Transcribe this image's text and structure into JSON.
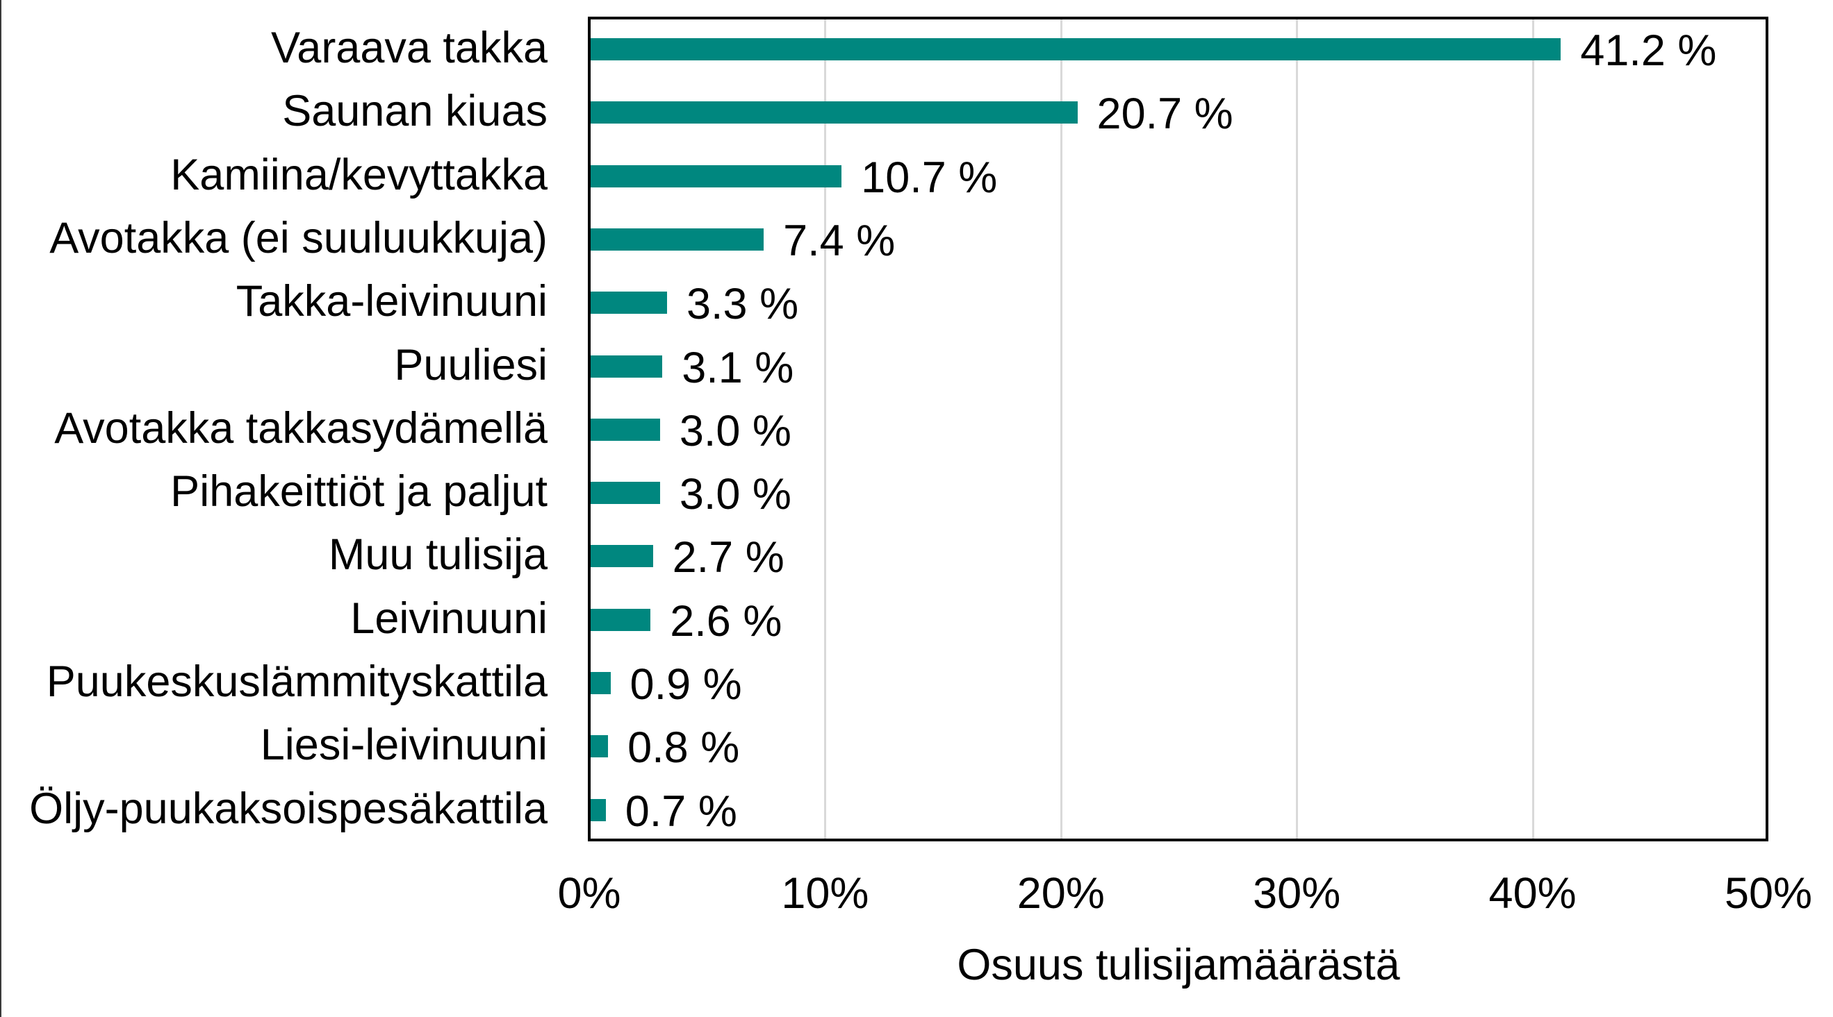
{
  "chart_data": {
    "type": "bar",
    "orientation": "horizontal",
    "title": "",
    "xlabel": "Osuus tulisijamäärästä",
    "ylabel": "",
    "xlim": [
      0,
      50
    ],
    "x_ticks": [
      "0%",
      "10%",
      "20%",
      "30%",
      "40%",
      "50%"
    ],
    "grid": "vertical",
    "legend": "none",
    "bar_color": "#00877f",
    "categories": [
      "Varaava takka",
      "Saunan kiuas",
      "Kamiina/kevyttakka",
      "Avotakka (ei suuluukkuja)",
      "Takka-leivinuuni",
      "Puuliesi",
      "Avotakka takkasydämellä",
      "Pihakeittiöt ja paljut",
      "Muu tulisija",
      "Leivinuuni",
      "Puukeskuslämmityskattila",
      "Liesi-leivinuuni",
      "Öljy-puukaksoispesäkattila"
    ],
    "values": [
      41.2,
      20.7,
      10.7,
      7.4,
      3.3,
      3.1,
      3.0,
      3.0,
      2.7,
      2.6,
      0.9,
      0.8,
      0.7
    ],
    "value_labels": [
      "41.2 %",
      "20.7 %",
      "10.7 %",
      "7.4 %",
      "3.3 %",
      "3.1 %",
      "3.0 %",
      "3.0 %",
      "2.7 %",
      "2.6 %",
      "0.9 %",
      "0.8 %",
      "0.7 %"
    ]
  }
}
